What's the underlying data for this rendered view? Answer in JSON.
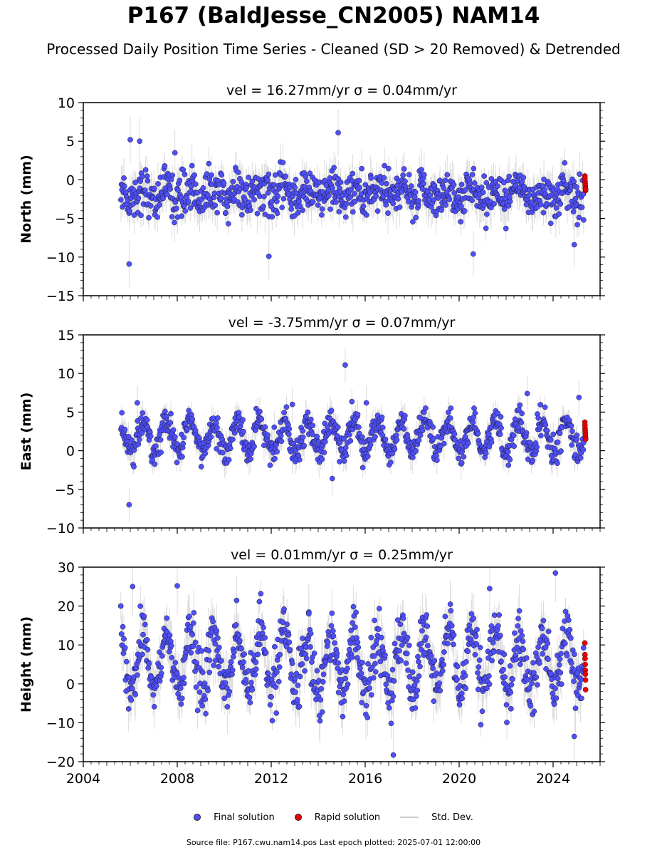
{
  "figure": {
    "title": "P167 (BaldJesse_CN2005) NAM14",
    "subtitle": "Processed Daily Position Time Series - Cleaned (SD > 20 Removed) & Detrended",
    "footer": "Source file: P167.cwu.nam14.pos  Last epoch plotted: 2025-07-01 12:00:00",
    "legend": [
      {
        "label": "Final solution",
        "marker": "dot",
        "color": "#4f4ff7"
      },
      {
        "label": "Rapid solution",
        "marker": "dot",
        "color": "#ee0000"
      },
      {
        "label": "Std. Dev.",
        "marker": "line",
        "color": "#cfcfcf"
      }
    ]
  },
  "chart_data": [
    {
      "type": "scatter",
      "title": "vel = 16.27mm/yr   σ = 0.04mm/yr",
      "ylabel": "North (mm)",
      "xlabel": "",
      "xlim": [
        2004,
        2026
      ],
      "ylim": [
        -15,
        10
      ],
      "yticks": [
        -15,
        -10,
        -5,
        0,
        5,
        10
      ],
      "ytick_labels": [
        "−15",
        "−10",
        "−5",
        "0",
        "5",
        "10"
      ],
      "series_shape": {
        "start": 2005.6,
        "end": 2025.3,
        "mean": -1.8,
        "amplitude": 0.7,
        "noise": 1.4,
        "stddev": 2.0
      },
      "outliers": [
        [
          2005.95,
          -10.9
        ],
        [
          2006.0,
          5.2
        ],
        [
          2006.4,
          5.0
        ],
        [
          2007.9,
          3.5
        ],
        [
          2011.9,
          -9.9
        ],
        [
          2014.85,
          6.1
        ],
        [
          2020.6,
          -9.6
        ],
        [
          2024.9,
          -8.4
        ]
      ],
      "rapid": [
        0.5,
        0.2,
        -0.2,
        -0.5,
        -0.8,
        -1.1,
        -1.4,
        -1.2
      ],
      "colors": {
        "final": "#4f4ff7",
        "rapid": "#ee0000",
        "stddev": "#cfcfcf"
      }
    },
    {
      "type": "scatter",
      "title": "vel = -3.75mm/yr   σ = 0.07mm/yr",
      "ylabel": "East (mm)",
      "xlabel": "",
      "xlim": [
        2004,
        2026
      ],
      "ylim": [
        -10,
        15
      ],
      "yticks": [
        -10,
        -5,
        0,
        5,
        10,
        15
      ],
      "ytick_labels": [
        "−10",
        "−5",
        "0",
        "5",
        "10",
        "15"
      ],
      "series_shape": {
        "start": 2005.6,
        "end": 2025.3,
        "mean": 1.8,
        "amplitude": 2.0,
        "noise": 0.9,
        "stddev": 1.5
      },
      "outliers": [
        [
          2005.95,
          -7.0
        ],
        [
          2006.3,
          6.2
        ],
        [
          2012.9,
          6.0
        ],
        [
          2014.6,
          -3.6
        ],
        [
          2015.15,
          11.1
        ],
        [
          2016.05,
          6.2
        ],
        [
          2022.9,
          7.4
        ],
        [
          2025.1,
          6.9
        ]
      ],
      "rapid": [
        3.7,
        3.3,
        2.9,
        2.6,
        2.3,
        2.0,
        1.7,
        1.5
      ],
      "colors": {
        "final": "#4f4ff7",
        "rapid": "#ee0000",
        "stddev": "#cfcfcf"
      }
    },
    {
      "type": "scatter",
      "title": "vel = 0.01mm/yr   σ = 0.25mm/yr",
      "ylabel": "Height (mm)",
      "xlabel": "",
      "xlim": [
        2004,
        2026
      ],
      "ylim": [
        -20,
        30
      ],
      "yticks": [
        -20,
        -10,
        0,
        10,
        20,
        30
      ],
      "ytick_labels": [
        "−20",
        "−10",
        "0",
        "10",
        "20",
        "30"
      ],
      "xticks": [
        2004,
        2008,
        2012,
        2016,
        2020,
        2024
      ],
      "xtick_labels": [
        "2004",
        "2008",
        "2012",
        "2016",
        "2020",
        "2024"
      ],
      "series_shape": {
        "start": 2005.6,
        "end": 2025.3,
        "mean": 5.5,
        "amplitude": 7.5,
        "noise": 3.5,
        "stddev": 5.0
      },
      "outliers": [
        [
          2006.1,
          25.0
        ],
        [
          2008.0,
          25.2
        ],
        [
          2013.6,
          18.0
        ],
        [
          2017.2,
          -18.3
        ],
        [
          2021.3,
          24.5
        ],
        [
          2024.1,
          28.5
        ],
        [
          2024.9,
          -13.5
        ]
      ],
      "rapid": [
        10.5,
        7.5,
        6.5,
        5.0,
        3.5,
        2.5,
        1.0,
        -1.5
      ],
      "colors": {
        "final": "#4f4ff7",
        "rapid": "#ee0000",
        "stddev": "#cfcfcf"
      }
    }
  ]
}
